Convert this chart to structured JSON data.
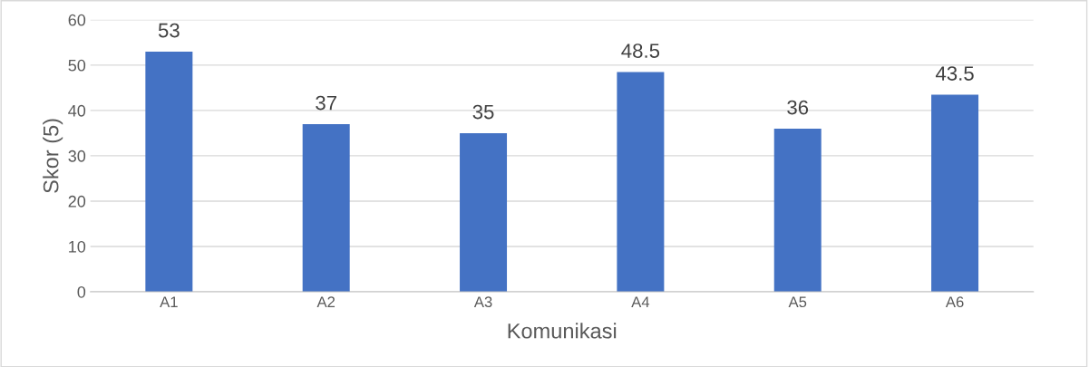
{
  "chart_data": {
    "type": "bar",
    "xlabel": "Komunikasi",
    "ylabel": "Skor (5)",
    "categories": [
      "A1",
      "A2",
      "A3",
      "A4",
      "A5",
      "A6"
    ],
    "values": [
      53,
      37,
      35,
      48.5,
      36,
      43.5
    ],
    "color": "#4472c4",
    "ylim": [
      0,
      60
    ],
    "yticks": [
      0,
      10,
      20,
      30,
      40,
      50,
      60
    ],
    "grid": "y",
    "data_labels": true
  }
}
